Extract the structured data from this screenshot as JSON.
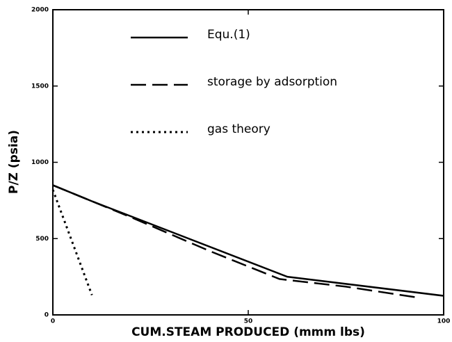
{
  "chart_data": {
    "type": "line",
    "xlabel": "CUM.STEAM PRODUCED (mmm lbs)",
    "ylabel": "P/Z (psia)",
    "xlim": [
      0,
      100
    ],
    "xticks": [
      0,
      50,
      100
    ],
    "ylim": [
      0,
      2000
    ],
    "yticks": [
      0,
      500,
      1000,
      1500,
      2000
    ],
    "series": [
      {
        "name": "Equ.(1)",
        "color": "#000000",
        "style": "solid",
        "x": [
          0,
          10,
          60,
          100
        ],
        "values": [
          850,
          745,
          250,
          125
        ]
      },
      {
        "name": "storage by adsorption",
        "color": "#000000",
        "style": "dashed",
        "x": [
          0,
          20,
          40,
          58,
          75,
          93
        ],
        "values": [
          850,
          640,
          420,
          235,
          185,
          115
        ]
      },
      {
        "name": "gas theory",
        "color": "#000000",
        "style": "dotted",
        "x": [
          0,
          10
        ],
        "values": [
          820,
          130
        ]
      }
    ]
  }
}
